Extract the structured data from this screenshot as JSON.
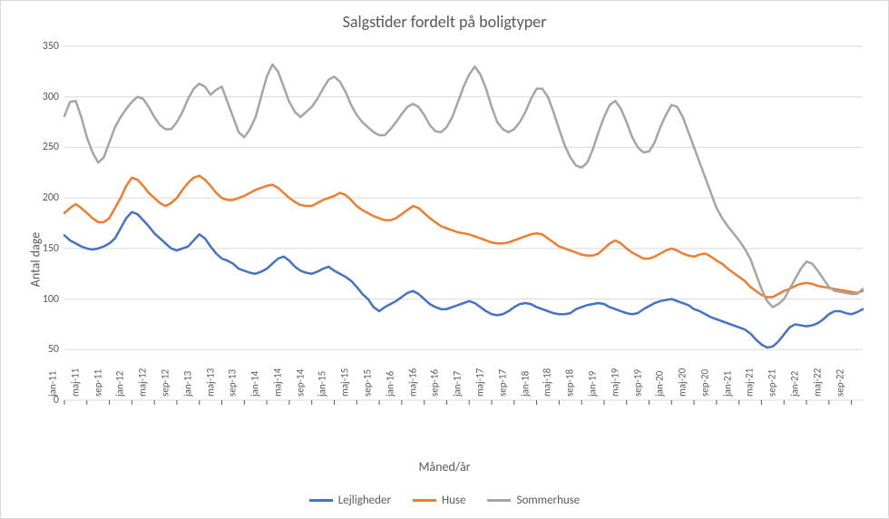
{
  "chart": {
    "type": "line",
    "title": "Salgstider fordelt på boligtyper",
    "title_fontsize": 18,
    "y_label": "Antal dage",
    "x_label": "Måned/år",
    "label_fontsize": 14,
    "background_color": "#ffffff",
    "border_color": "#d9d9d9",
    "grid_color": "#d9d9d9",
    "axis_color": "#d9d9d9",
    "tick_color": "#595959",
    "tick_fontsize": 12,
    "line_width": 2.5,
    "ylim": [
      0,
      350
    ],
    "ytick_step": 50,
    "x_categories": [
      "jan-11",
      "feb-11",
      "mar-11",
      "apr-11",
      "maj-11",
      "jun-11",
      "jul-11",
      "aug-11",
      "sep-11",
      "okt-11",
      "nov-11",
      "dec-11",
      "jan-12",
      "feb-12",
      "mar-12",
      "apr-12",
      "maj-12",
      "jun-12",
      "jul-12",
      "aug-12",
      "sep-12",
      "okt-12",
      "nov-12",
      "dec-12",
      "jan-13",
      "feb-13",
      "mar-13",
      "apr-13",
      "maj-13",
      "jun-13",
      "jul-13",
      "aug-13",
      "sep-13",
      "okt-13",
      "nov-13",
      "dec-13",
      "jan-14",
      "feb-14",
      "mar-14",
      "apr-14",
      "maj-14",
      "jun-14",
      "jul-14",
      "aug-14",
      "sep-14",
      "okt-14",
      "nov-14",
      "dec-14",
      "jan-15",
      "feb-15",
      "mar-15",
      "apr-15",
      "maj-15",
      "jun-15",
      "jul-15",
      "aug-15",
      "sep-15",
      "okt-15",
      "nov-15",
      "dec-15",
      "jan-16",
      "feb-16",
      "mar-16",
      "apr-16",
      "maj-16",
      "jun-16",
      "jul-16",
      "aug-16",
      "sep-16",
      "okt-16",
      "nov-16",
      "dec-16",
      "jan-17",
      "feb-17",
      "mar-17",
      "apr-17",
      "maj-17",
      "jun-17",
      "jul-17",
      "aug-17",
      "sep-17",
      "okt-17",
      "nov-17",
      "dec-17",
      "jan-18",
      "feb-18",
      "mar-18",
      "apr-18",
      "maj-18",
      "jun-18",
      "jul-18",
      "aug-18",
      "sep-18",
      "okt-18",
      "nov-18",
      "dec-18",
      "jan-19",
      "feb-19",
      "mar-19",
      "apr-19",
      "maj-19",
      "jun-19",
      "jul-19",
      "aug-19",
      "sep-19",
      "okt-19",
      "nov-19",
      "dec-19",
      "jan-20",
      "feb-20",
      "mar-20",
      "apr-20",
      "maj-20",
      "jun-20",
      "jul-20",
      "aug-20",
      "sep-20",
      "okt-20",
      "nov-20",
      "dec-20",
      "jan-21",
      "feb-21",
      "mar-21",
      "apr-21",
      "maj-21",
      "jun-21",
      "jul-21",
      "aug-21",
      "sep-21",
      "okt-21",
      "nov-21",
      "dec-21",
      "jan-22",
      "feb-22",
      "mar-22",
      "apr-22",
      "maj-22",
      "jun-22",
      "jul-22",
      "aug-22",
      "sep-22",
      "okt-22",
      "nov-22"
    ],
    "x_tick_every": 4,
    "series": [
      {
        "name": "Lejligheder",
        "color": "#4472c4",
        "values": [
          163,
          158,
          155,
          152,
          150,
          149,
          150,
          152,
          155,
          160,
          170,
          180,
          186,
          184,
          178,
          172,
          165,
          160,
          155,
          150,
          148,
          150,
          152,
          158,
          164,
          160,
          152,
          145,
          140,
          138,
          135,
          130,
          128,
          126,
          125,
          127,
          130,
          135,
          140,
          142,
          138,
          132,
          128,
          126,
          125,
          127,
          130,
          132,
          128,
          125,
          122,
          118,
          112,
          105,
          100,
          92,
          88,
          92,
          95,
          98,
          102,
          106,
          108,
          105,
          100,
          95,
          92,
          90,
          90,
          92,
          94,
          96,
          98,
          96,
          92,
          88,
          85,
          84,
          85,
          88,
          92,
          95,
          96,
          95,
          92,
          90,
          88,
          86,
          85,
          85,
          86,
          90,
          92,
          94,
          95,
          96,
          95,
          92,
          90,
          88,
          86,
          85,
          86,
          90,
          93,
          96,
          98,
          99,
          100,
          98,
          96,
          94,
          90,
          88,
          85,
          82,
          80,
          78,
          76,
          74,
          72,
          70,
          66,
          60,
          55,
          52,
          53,
          58,
          65,
          72,
          75,
          74,
          73,
          74,
          76,
          80,
          85,
          88,
          88,
          86,
          85,
          87,
          90
        ]
      },
      {
        "name": "Huse",
        "color": "#ed7d31",
        "values": [
          185,
          190,
          194,
          190,
          185,
          180,
          176,
          176,
          180,
          190,
          200,
          212,
          220,
          218,
          212,
          205,
          200,
          195,
          192,
          195,
          200,
          208,
          215,
          220,
          222,
          218,
          212,
          205,
          200,
          198,
          198,
          200,
          202,
          205,
          208,
          210,
          212,
          213,
          210,
          205,
          200,
          196,
          193,
          192,
          192,
          195,
          198,
          200,
          202,
          205,
          203,
          198,
          192,
          188,
          185,
          182,
          180,
          178,
          178,
          180,
          184,
          188,
          192,
          190,
          185,
          180,
          176,
          172,
          170,
          168,
          166,
          165,
          164,
          162,
          160,
          158,
          156,
          155,
          155,
          156,
          158,
          160,
          162,
          164,
          165,
          164,
          160,
          156,
          152,
          150,
          148,
          146,
          144,
          143,
          143,
          145,
          150,
          155,
          158,
          155,
          150,
          146,
          143,
          140,
          140,
          142,
          145,
          148,
          150,
          148,
          145,
          143,
          142,
          144,
          145,
          142,
          138,
          135,
          130,
          126,
          122,
          118,
          112,
          108,
          104,
          102,
          102,
          105,
          108,
          110,
          113,
          115,
          116,
          115,
          113,
          112,
          111,
          110,
          109,
          108,
          107,
          106,
          108
        ]
      },
      {
        "name": "Sommerhuse",
        "color": "#a5a5a5",
        "values": [
          281,
          295,
          296,
          280,
          260,
          245,
          235,
          240,
          255,
          270,
          280,
          288,
          295,
          300,
          298,
          290,
          280,
          272,
          268,
          268,
          275,
          285,
          298,
          308,
          313,
          310,
          302,
          307,
          310,
          295,
          280,
          265,
          260,
          268,
          280,
          300,
          320,
          332,
          325,
          310,
          295,
          285,
          280,
          285,
          290,
          298,
          308,
          317,
          320,
          315,
          305,
          292,
          282,
          275,
          270,
          265,
          262,
          262,
          268,
          275,
          283,
          290,
          293,
          290,
          282,
          272,
          266,
          265,
          270,
          280,
          295,
          310,
          322,
          330,
          322,
          308,
          290,
          275,
          268,
          265,
          268,
          275,
          285,
          298,
          308,
          308,
          300,
          285,
          268,
          252,
          240,
          232,
          230,
          235,
          248,
          265,
          280,
          292,
          296,
          288,
          275,
          260,
          250,
          245,
          246,
          255,
          270,
          282,
          292,
          290,
          280,
          265,
          250,
          235,
          220,
          205,
          190,
          180,
          172,
          165,
          158,
          150,
          140,
          125,
          110,
          98,
          92,
          95,
          100,
          110,
          120,
          130,
          137,
          135,
          128,
          120,
          112,
          108,
          107,
          106,
          105,
          105,
          110
        ]
      }
    ],
    "legend": {
      "labels": [
        "Lejligheder",
        "Huse",
        "Sommerhuse"
      ],
      "position": "bottom"
    }
  }
}
